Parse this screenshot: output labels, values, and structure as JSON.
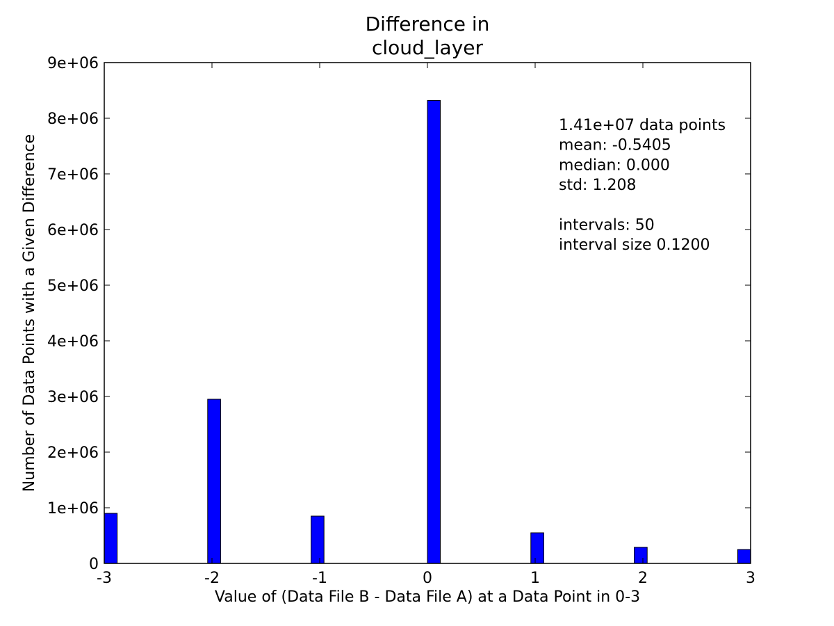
{
  "chart_data": {
    "type": "bar",
    "title_lines": [
      "Difference in",
      "cloud_layer"
    ],
    "xlabel": "Value of (Data File B - Data File A) at a Data Point in 0-3",
    "ylabel": "Number of Data Points with a Given Difference",
    "xlim": [
      -3,
      3
    ],
    "ylim": [
      0,
      9000000
    ],
    "bin_width": 0.12,
    "xticks": [
      -3,
      -2,
      -1,
      0,
      1,
      2,
      3
    ],
    "xtick_labels": [
      "-3",
      "-2",
      "-1",
      "0",
      "1",
      "2",
      "3"
    ],
    "yticks": [
      0,
      1000000,
      2000000,
      3000000,
      4000000,
      5000000,
      6000000,
      7000000,
      8000000,
      9000000
    ],
    "ytick_labels": [
      "0",
      "1e+06",
      "2e+06",
      "3e+06",
      "4e+06",
      "5e+06",
      "6e+06",
      "7e+06",
      "8e+06",
      "9e+06"
    ],
    "bars": [
      {
        "x": -3.0,
        "value": 900000
      },
      {
        "x": -2.04,
        "value": 2950000
      },
      {
        "x": -1.08,
        "value": 850000
      },
      {
        "x": 0.0,
        "value": 8320000
      },
      {
        "x": 0.96,
        "value": 550000
      },
      {
        "x": 1.92,
        "value": 290000
      },
      {
        "x": 2.88,
        "value": 250000
      }
    ],
    "bar_color": "#0000ff",
    "grid": false,
    "stats_lines": [
      "1.41e+07 data points",
      "mean: -0.5405",
      "median: 0.000",
      "std: 1.208",
      "",
      "intervals: 50",
      "interval size 0.1200"
    ]
  }
}
